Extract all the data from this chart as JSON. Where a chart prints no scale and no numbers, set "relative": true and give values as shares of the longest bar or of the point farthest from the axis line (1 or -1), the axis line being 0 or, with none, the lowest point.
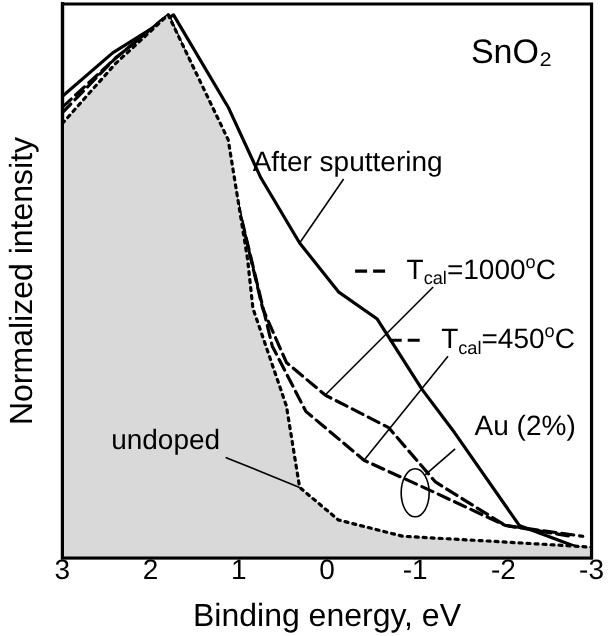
{
  "chart_data": {
    "type": "line",
    "relative": true,
    "xlabel": "Binding energy, eV",
    "ylabel": "Normalized intensity",
    "xlim": [
      3,
      -3
    ],
    "xticks": [
      3,
      2,
      1,
      0,
      -1,
      -2,
      -3
    ],
    "grid": false,
    "legend": "right",
    "marker": "none",
    "annotations": [
      "SnO₂",
      {
        "text": "Au (2%)",
        "x": -1,
        "y": 0.12
      }
    ],
    "series": [
      {
        "name": "undoped",
        "type": "area",
        "color": "#000000",
        "line_style": "dotted",
        "x": [
          3,
          2.4,
          1.8,
          1.12,
          0.9,
          0.84,
          0.46,
          0.31,
          -0.13,
          -0.86,
          -1.96,
          -3
        ],
        "values": [
          0.8,
          0.91,
          1.0,
          0.77,
          0.55,
          0.46,
          0.28,
          0.13,
          0.07,
          0.04,
          0.03,
          0.02
        ]
      },
      {
        "name": "T$_{cal}$=450$^{o}$C",
        "type": "line",
        "color": "#000000",
        "line_style": "dashed",
        "x": [
          3,
          2.4,
          1.8,
          1.2,
          0.62,
          0.24,
          -0.42,
          -1.23,
          -2.02,
          -2.77
        ],
        "values": [
          0.83,
          0.92,
          1.0,
          0.78,
          0.39,
          0.27,
          0.18,
          0.12,
          0.06,
          0.04
        ]
      },
      {
        "name": "T$_{cal}$=1000$^{o}$C",
        "type": "line",
        "color": "#000000",
        "line_style": "dashed",
        "x": [
          3,
          2.4,
          1.8,
          1.2,
          0.73,
          0.46,
          0.02,
          -0.7,
          -1.23,
          -2.02,
          -2.9
        ],
        "values": [
          0.82,
          0.92,
          1.0,
          0.78,
          0.46,
          0.36,
          0.3,
          0.24,
          0.14,
          0.06,
          0.04
        ]
      },
      {
        "name": "After sputtering",
        "type": "line",
        "color": "#000000",
        "line_style": "solid",
        "x": [
          3,
          2.43,
          1.74,
          1.12,
          0.75,
          0.31,
          -0.13,
          -0.57,
          -1.08,
          -1.45,
          -2.18,
          -3
        ],
        "values": [
          0.85,
          0.93,
          1.0,
          0.83,
          0.7,
          0.58,
          0.49,
          0.44,
          0.31,
          0.23,
          0.06,
          0.01
        ]
      }
    ]
  }
}
